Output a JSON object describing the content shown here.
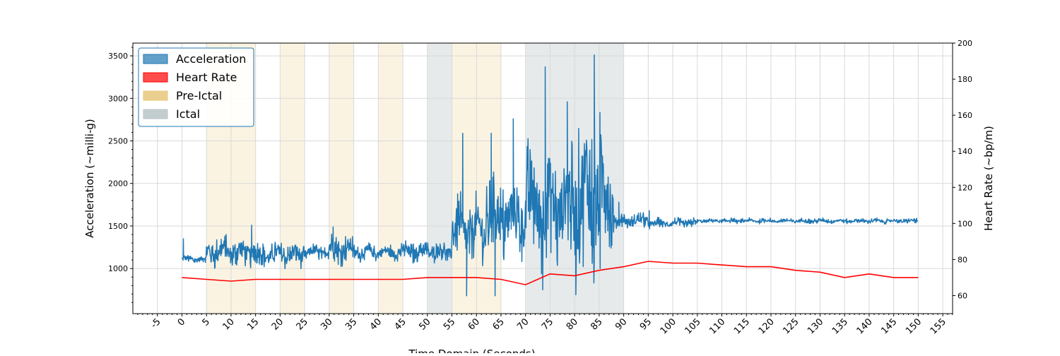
{
  "chart_data": {
    "type": "line",
    "xlabel": "Time Domain (Seconds)",
    "ylabel_left": "Acceleration (~milli-g)",
    "ylabel_right": "Heart Rate (~bp/m)",
    "xlim": [
      -10,
      157
    ],
    "ylim_left": [
      470,
      3650
    ],
    "ylim_right": [
      50,
      200
    ],
    "x_ticks": [
      -5,
      0,
      5,
      10,
      15,
      20,
      25,
      30,
      35,
      40,
      45,
      50,
      55,
      60,
      65,
      70,
      75,
      80,
      85,
      90,
      95,
      100,
      105,
      110,
      115,
      120,
      125,
      130,
      135,
      140,
      145,
      150,
      155
    ],
    "y_left_ticks": [
      1000,
      1500,
      2000,
      2500,
      3000,
      3500
    ],
    "y_right_ticks": [
      60,
      80,
      100,
      120,
      140,
      160,
      180,
      200
    ],
    "grid": true,
    "legend_position": "top-left",
    "legend": [
      {
        "label": "Acceleration",
        "color": "#1f77b4"
      },
      {
        "label": "Heart Rate",
        "color": "#ff0000"
      },
      {
        "label": "Pre-Ictal",
        "color": "#e8c77c"
      },
      {
        "label": "Ictal",
        "color": "#b8c4c7"
      }
    ],
    "pre_ictal_intervals": [
      [
        5,
        15
      ],
      [
        20,
        25
      ],
      [
        30,
        35
      ],
      [
        40,
        45
      ],
      [
        55,
        65
      ]
    ],
    "ictal_intervals": [
      [
        50,
        55
      ],
      [
        70,
        90
      ]
    ],
    "series": [
      {
        "name": "Heart Rate",
        "axis": "right",
        "color": "#ff0000",
        "x": [
          0,
          5,
          10,
          15,
          20,
          25,
          30,
          35,
          40,
          45,
          50,
          55,
          60,
          65,
          70,
          75,
          80,
          85,
          90,
          95,
          100,
          105,
          110,
          115,
          120,
          125,
          130,
          135,
          140,
          145,
          150
        ],
        "y": [
          70,
          69,
          68,
          69,
          69,
          69,
          69,
          69,
          69,
          69,
          70,
          70,
          70,
          69,
          66,
          72,
          71,
          74,
          76,
          79,
          78,
          78,
          77,
          76,
          76,
          74,
          73,
          70,
          72,
          70,
          70
        ]
      },
      {
        "name": "Acceleration",
        "axis": "left",
        "color": "#1f77b4",
        "segments": [
          {
            "x0": 0,
            "x1": 5,
            "mean": 1110,
            "amp": 50
          },
          {
            "x0": 5,
            "x1": 15,
            "mean": 1200,
            "amp": 190
          },
          {
            "x0": 15,
            "x1": 25,
            "mean": 1160,
            "amp": 150
          },
          {
            "x0": 25,
            "x1": 30,
            "mean": 1190,
            "amp": 90
          },
          {
            "x0": 30,
            "x1": 35,
            "mean": 1230,
            "amp": 170
          },
          {
            "x0": 35,
            "x1": 45,
            "mean": 1190,
            "amp": 100
          },
          {
            "x0": 45,
            "x1": 55,
            "mean": 1200,
            "amp": 130
          },
          {
            "x0": 55,
            "x1": 62,
            "mean": 1450,
            "amp": 380
          },
          {
            "x0": 62,
            "x1": 70,
            "mean": 1600,
            "amp": 500
          },
          {
            "x0": 70,
            "x1": 80,
            "mean": 1750,
            "amp": 750
          },
          {
            "x0": 80,
            "x1": 88,
            "mean": 1850,
            "amp": 1000
          },
          {
            "x0": 88,
            "x1": 95,
            "mean": 1560,
            "amp": 90
          },
          {
            "x0": 95,
            "x1": 105,
            "mean": 1530,
            "amp": 60
          },
          {
            "x0": 105,
            "x1": 150,
            "mean": 1560,
            "amp": 30
          }
        ],
        "spikes": [
          [
            0.3,
            1350
          ],
          [
            14.2,
            1510
          ],
          [
            30.8,
            1490
          ],
          [
            57.2,
            2590
          ],
          [
            58.0,
            680
          ],
          [
            63.0,
            2590
          ],
          [
            63.8,
            680
          ],
          [
            67.5,
            2760
          ],
          [
            73.5,
            750
          ],
          [
            74.0,
            3370
          ],
          [
            78.5,
            2960
          ],
          [
            84.0,
            3510
          ],
          [
            85.2,
            1000
          ],
          [
            89.0,
            1780
          ],
          [
            95.2,
            1680
          ]
        ]
      }
    ]
  }
}
